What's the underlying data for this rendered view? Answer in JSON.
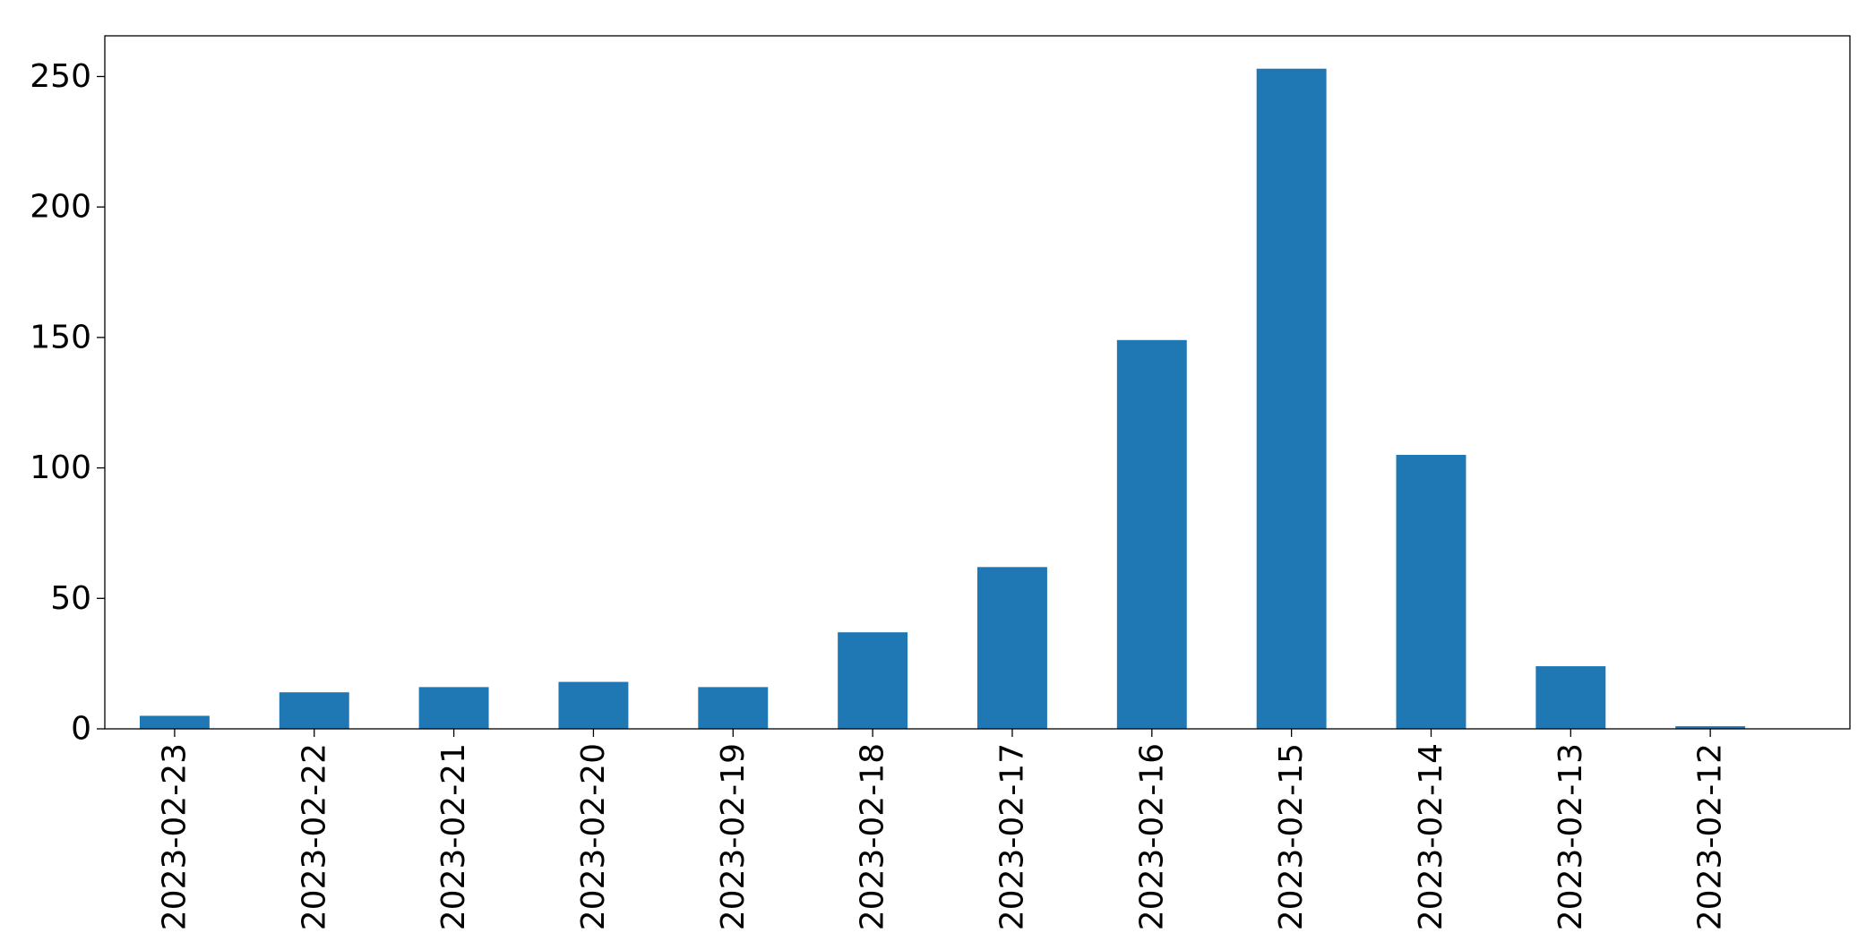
{
  "chart_data": {
    "type": "bar",
    "categories": [
      "2023-02-23",
      "2023-02-22",
      "2023-02-21",
      "2023-02-20",
      "2023-02-19",
      "2023-02-18",
      "2023-02-17",
      "2023-02-16",
      "2023-02-15",
      "2023-02-14",
      "2023-02-13",
      "2023-02-12"
    ],
    "values": [
      5,
      14,
      16,
      18,
      16,
      37,
      62,
      149,
      253,
      105,
      24,
      1
    ],
    "title": "",
    "xlabel": "",
    "ylabel": "",
    "ylim": [
      0,
      265.6
    ],
    "yticks": [
      0,
      50,
      100,
      150,
      200,
      250
    ],
    "grid": false,
    "legend": "none",
    "bar_color": "#1f77b4",
    "x_tick_rotation": "vertical"
  }
}
